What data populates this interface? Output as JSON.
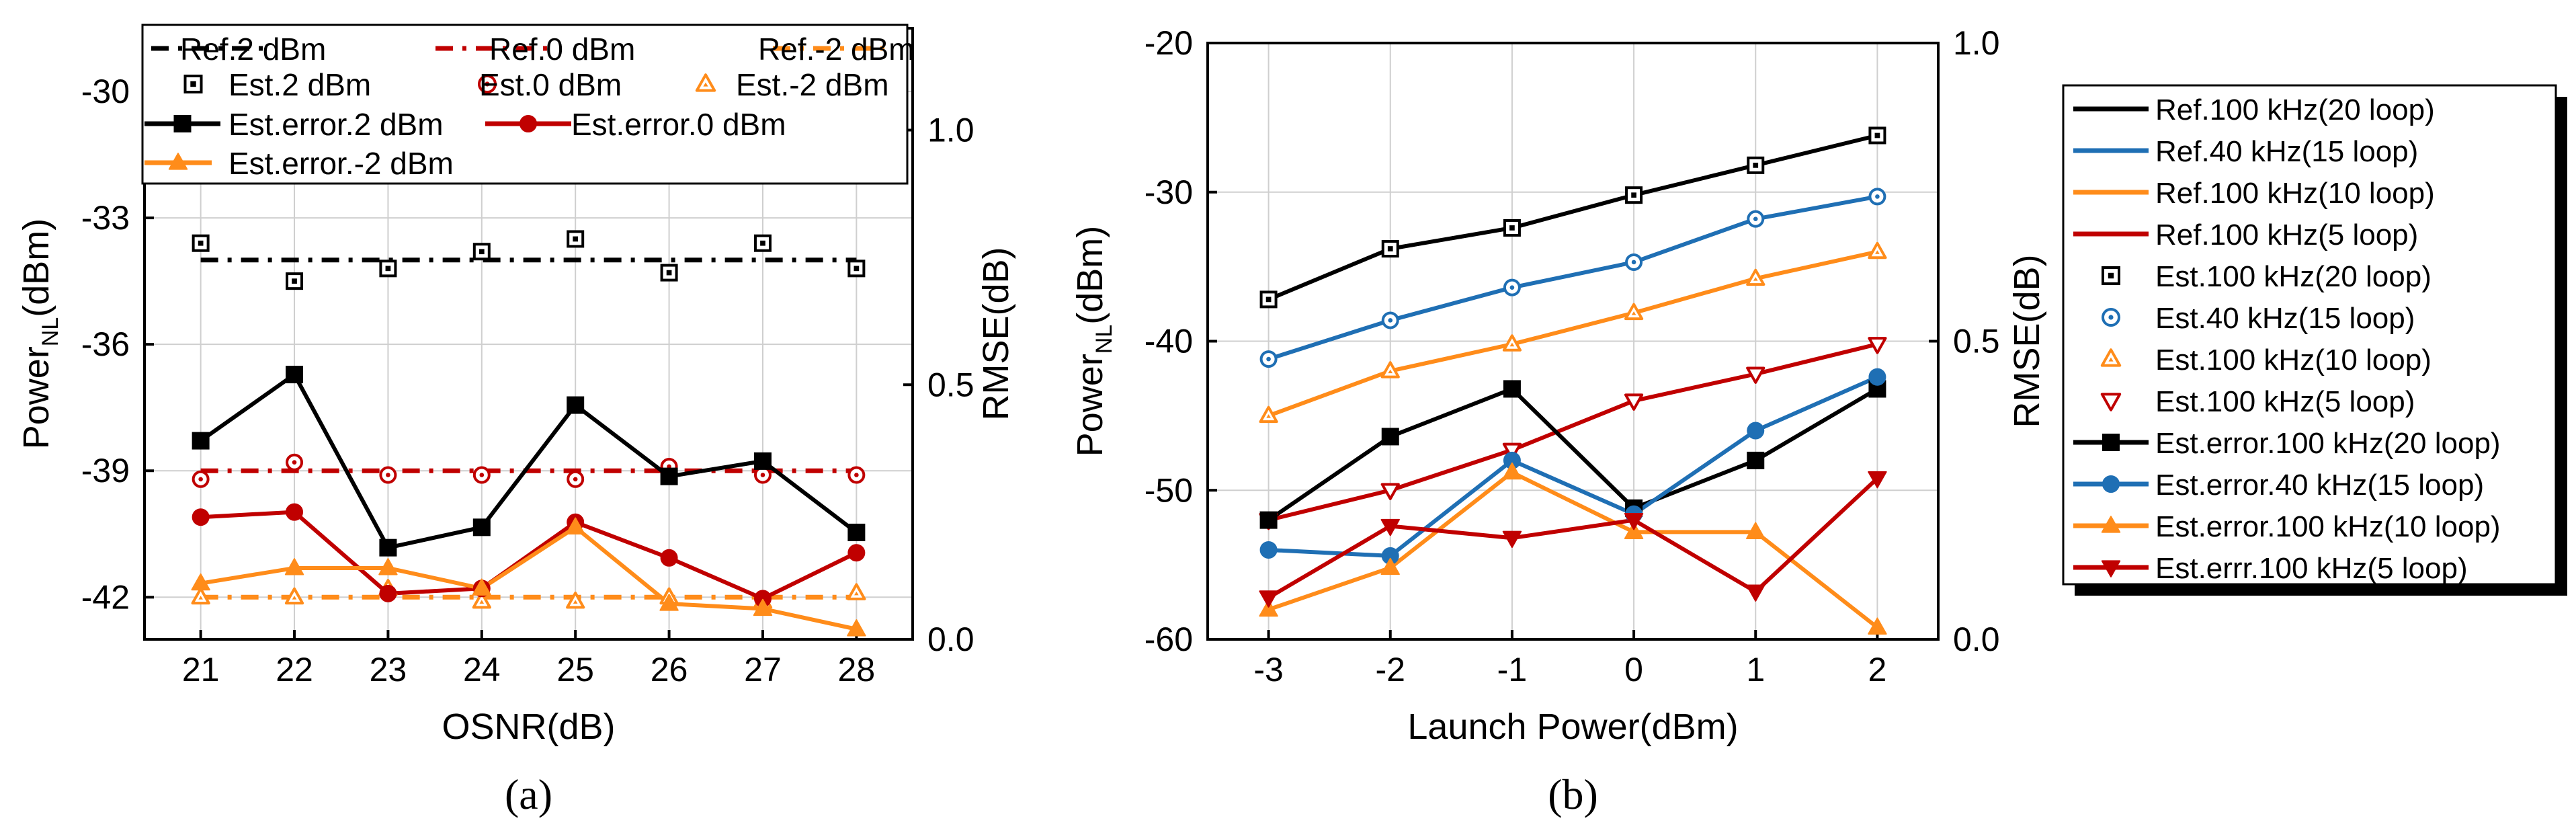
{
  "panel_a": {
    "type": "line",
    "caption": "(a)",
    "xlabel": "OSNR(dB)",
    "ylabel_main": "Power",
    "ylabel_sub": "NL",
    "ylabel_unit": "(dBm)",
    "y2label": "RMSE(dB)",
    "x": [
      21,
      22,
      23,
      24,
      25,
      26,
      27,
      28
    ],
    "xlim": [
      20.4,
      28.6
    ],
    "ylim": [
      -43,
      -28.5
    ],
    "y_ticks": [
      "-30",
      "-33",
      "-36",
      "-39",
      "-42"
    ],
    "y2lim": [
      0,
      1.2
    ],
    "y2_ticks": [
      "1.0",
      "0.5",
      "0.0"
    ],
    "series": [
      {
        "name": "Ref.2 dBm",
        "kind": "ref",
        "axis": "left",
        "color": "#000000",
        "dash": "dashdot",
        "values": [
          -34.0,
          -34.0,
          -34.0,
          -34.0,
          -34.0,
          -34.0,
          -34.0,
          -34.0
        ]
      },
      {
        "name": "Ref.0 dBm",
        "kind": "ref",
        "axis": "left",
        "color": "#c00000",
        "dash": "dashdot",
        "values": [
          -39.0,
          -39.0,
          -39.0,
          -39.0,
          -39.0,
          -39.0,
          -39.0,
          -39.0
        ]
      },
      {
        "name": "Ref.-2 dBm",
        "kind": "ref",
        "axis": "left",
        "color": "#ff8c1a",
        "dash": "dashdot",
        "values": [
          -42.0,
          -42.0,
          -42.0,
          -42.0,
          -42.0,
          -42.0,
          -42.0,
          -42.0
        ]
      },
      {
        "name": "Est.2 dBm",
        "kind": "est",
        "axis": "left",
        "color": "#000000",
        "marker": "square",
        "values": [
          -33.6,
          -34.5,
          -34.2,
          -33.8,
          -33.5,
          -34.3,
          -33.6,
          -34.2
        ]
      },
      {
        "name": "Est.0 dBm",
        "kind": "est",
        "axis": "left",
        "color": "#c00000",
        "marker": "circle",
        "values": [
          -39.2,
          -38.8,
          -39.1,
          -39.1,
          -39.2,
          -38.9,
          -39.1,
          -39.1
        ]
      },
      {
        "name": "Est.-2 dBm",
        "kind": "est",
        "axis": "left",
        "color": "#ff8c1a",
        "marker": "triangle",
        "values": [
          -42.0,
          -42.0,
          -41.8,
          -42.1,
          -42.1,
          -42.0,
          -42.1,
          -41.9
        ]
      },
      {
        "name": "Est.error.2 dBm",
        "kind": "err",
        "axis": "right",
        "color": "#000000",
        "marker": "square",
        "values": [
          0.39,
          0.52,
          0.18,
          0.22,
          0.46,
          0.32,
          0.35,
          0.21
        ]
      },
      {
        "name": "Est.error.0 dBm",
        "kind": "err",
        "axis": "right",
        "color": "#c00000",
        "marker": "circle",
        "values": [
          0.24,
          0.25,
          0.09,
          0.1,
          0.23,
          0.16,
          0.08,
          0.17
        ]
      },
      {
        "name": "Est.error.-2 dBm",
        "kind": "err",
        "axis": "right",
        "color": "#ff8c1a",
        "marker": "triangle",
        "values": [
          0.11,
          0.14,
          0.14,
          0.1,
          0.22,
          0.07,
          0.06,
          0.02
        ]
      }
    ]
  },
  "panel_b": {
    "type": "line",
    "caption": "(b)",
    "xlabel": "Launch Power(dBm)",
    "ylabel_main": "Power",
    "ylabel_sub": "NL",
    "ylabel_unit": "(dBm)",
    "y2label": "RMSE(dB)",
    "x": [
      -3,
      -2,
      -1,
      0,
      1,
      2
    ],
    "x_ticks": [
      "-3",
      "-2",
      "-1",
      "0",
      "1",
      "2"
    ],
    "xlim": [
      -3.5,
      2.5
    ],
    "ylim": [
      -60,
      -20
    ],
    "y_ticks": [
      "-20",
      "-30",
      "-40",
      "-50",
      "-60"
    ],
    "y2lim": [
      0,
      1.0
    ],
    "y2_ticks": [
      "1.0",
      "0.5",
      "0.0"
    ],
    "series": [
      {
        "name": "Ref.100 kHz(20 loop)",
        "kind": "ref",
        "axis": "left",
        "color": "#000000",
        "values": [
          -37.2,
          -33.8,
          -32.4,
          -30.2,
          -28.2,
          -26.2
        ]
      },
      {
        "name": "Ref.40 kHz(15 loop)",
        "kind": "ref",
        "axis": "left",
        "color": "#1f6fb4",
        "values": [
          -41.2,
          -38.6,
          -36.4,
          -34.7,
          -31.8,
          -30.3
        ]
      },
      {
        "name": "Ref.100 kHz(10 loop)",
        "kind": "ref",
        "axis": "left",
        "color": "#ff8c1a",
        "values": [
          -45.0,
          -42.0,
          -40.2,
          -38.1,
          -35.8,
          -34.0
        ]
      },
      {
        "name": "Ref.100 kHz(5 loop)",
        "kind": "ref",
        "axis": "left",
        "color": "#c00000",
        "values": [
          -52.0,
          -50.0,
          -47.3,
          -44.0,
          -42.2,
          -40.2
        ]
      },
      {
        "name": "Est.100 kHz(20 loop)",
        "kind": "est",
        "axis": "left",
        "color": "#000000",
        "marker": "square",
        "values": [
          -37.2,
          -33.8,
          -32.4,
          -30.2,
          -28.2,
          -26.2
        ]
      },
      {
        "name": "Est.40 kHz(15 loop)",
        "kind": "est",
        "axis": "left",
        "color": "#1f6fb4",
        "marker": "circle",
        "values": [
          -41.2,
          -38.6,
          -36.4,
          -34.7,
          -31.8,
          -30.3
        ]
      },
      {
        "name": "Est.100 kHz(10 loop)",
        "kind": "est",
        "axis": "left",
        "color": "#ff8c1a",
        "marker": "triangle",
        "values": [
          -45.0,
          -42.0,
          -40.2,
          -38.1,
          -35.8,
          -34.0
        ]
      },
      {
        "name": "Est.100 kHz(5 loop)",
        "kind": "est",
        "axis": "left",
        "color": "#c00000",
        "marker": "triangle-down",
        "values": [
          -52.0,
          -50.0,
          -47.3,
          -44.0,
          -42.2,
          -40.2
        ]
      },
      {
        "name": "Est.error.100 kHz(20 loop)",
        "kind": "err",
        "axis": "right",
        "color": "#000000",
        "marker": "square",
        "values": [
          0.2,
          0.34,
          0.42,
          0.22,
          0.3,
          0.42
        ]
      },
      {
        "name": "Est.error.40 kHz(15 loop)",
        "kind": "err",
        "axis": "right",
        "color": "#1f6fb4",
        "marker": "circle",
        "values": [
          0.15,
          0.14,
          0.3,
          0.21,
          0.35,
          0.44
        ]
      },
      {
        "name": "Est.error.100 kHz(10 loop)",
        "kind": "err",
        "axis": "right",
        "color": "#ff8c1a",
        "marker": "triangle",
        "values": [
          0.05,
          0.12,
          0.28,
          0.18,
          0.18,
          0.02
        ]
      },
      {
        "name": "Est.errr.100 kHz(5 loop)",
        "kind": "err",
        "axis": "right",
        "color": "#c00000",
        "marker": "triangle-down",
        "values": [
          0.07,
          0.19,
          0.17,
          0.2,
          0.08,
          0.27
        ]
      }
    ]
  }
}
